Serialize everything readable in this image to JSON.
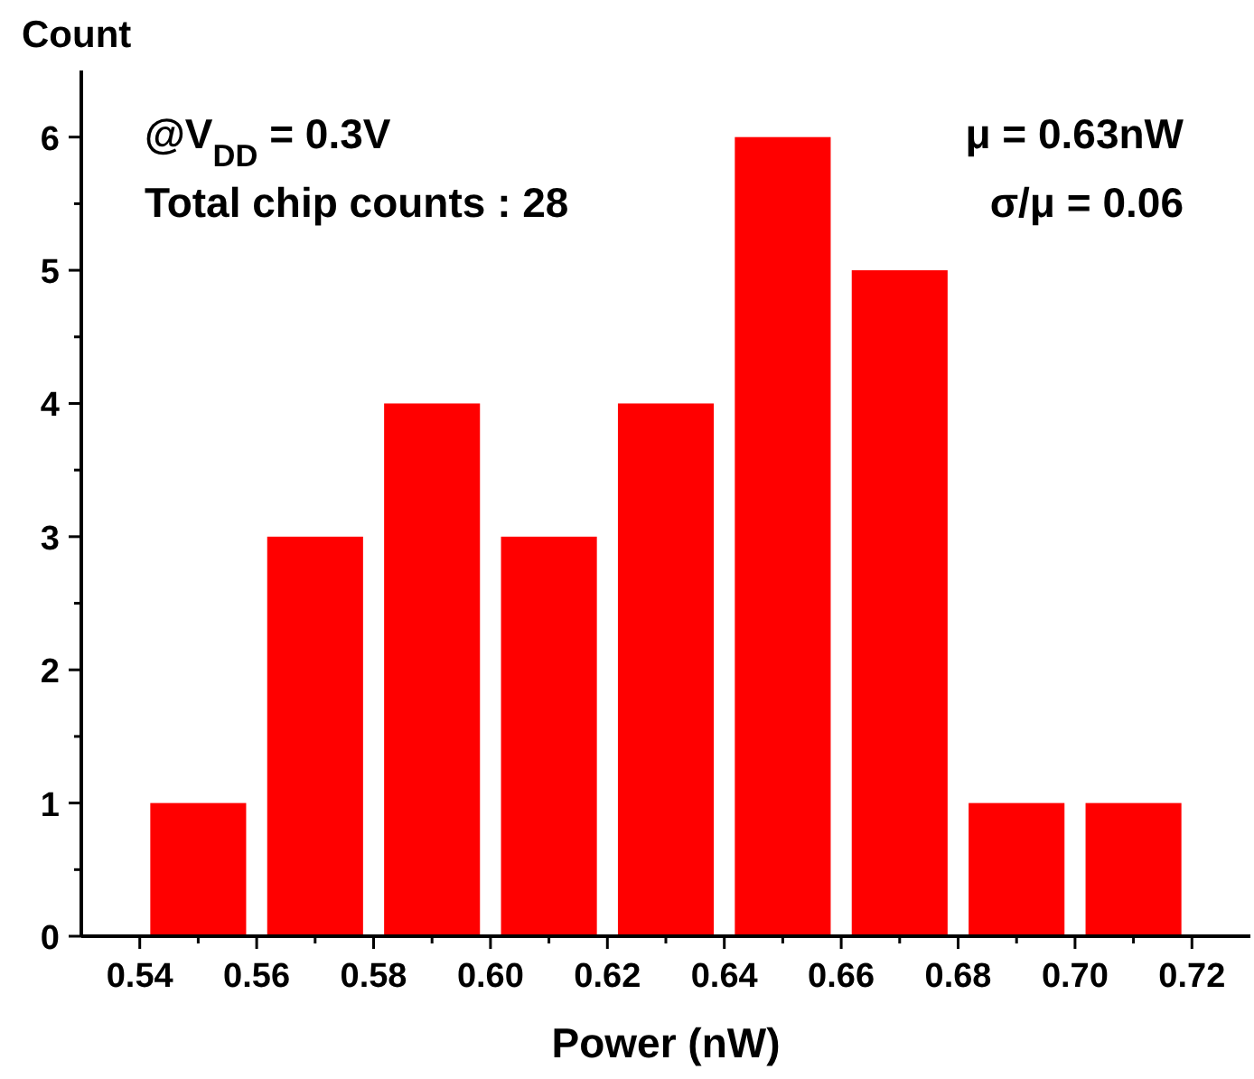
{
  "chart_data": {
    "type": "histogram",
    "xlabel": "Power (nW)",
    "ylabel": "Count",
    "bins": [
      0.54,
      0.56,
      0.58,
      0.6,
      0.62,
      0.64,
      0.66,
      0.68,
      0.7,
      0.72
    ],
    "values": [
      1,
      3,
      4,
      3,
      4,
      6,
      5,
      1,
      1
    ],
    "color": "#ff0000",
    "xlim": [
      0.53,
      0.73
    ],
    "xticks": [
      {
        "value": 0.54,
        "label": "0.54"
      },
      {
        "value": 0.55,
        "label": null
      },
      {
        "value": 0.56,
        "label": "0.56"
      },
      {
        "value": 0.57,
        "label": null
      },
      {
        "value": 0.58,
        "label": "0.58"
      },
      {
        "value": 0.59,
        "label": null
      },
      {
        "value": 0.6,
        "label": "0.60"
      },
      {
        "value": 0.61,
        "label": null
      },
      {
        "value": 0.62,
        "label": "0.62"
      },
      {
        "value": 0.63,
        "label": null
      },
      {
        "value": 0.64,
        "label": "0.64"
      },
      {
        "value": 0.65,
        "label": null
      },
      {
        "value": 0.66,
        "label": "0.66"
      },
      {
        "value": 0.67,
        "label": null
      },
      {
        "value": 0.68,
        "label": "0.68"
      },
      {
        "value": 0.69,
        "label": null
      },
      {
        "value": 0.7,
        "label": "0.70"
      },
      {
        "value": 0.71,
        "label": null
      },
      {
        "value": 0.72,
        "label": "0.72"
      }
    ],
    "ylim": [
      0,
      6.5
    ],
    "yticks": [
      0,
      {
        "value": 0.5,
        "label": null
      },
      1,
      {
        "value": 1.5,
        "label": null
      },
      2,
      {
        "value": 2.5,
        "label": null
      },
      3,
      {
        "value": 3.5,
        "label": null
      },
      4,
      {
        "value": 4.5,
        "label": null
      },
      5,
      {
        "value": 5.5,
        "label": null
      },
      6
    ],
    "annotations": [
      "@V$_{DD}$ = 0.3V",
      "Total chip counts : 28",
      "μ = 0.63nW",
      "σ/μ = 0.06"
    ],
    "grid": false
  }
}
